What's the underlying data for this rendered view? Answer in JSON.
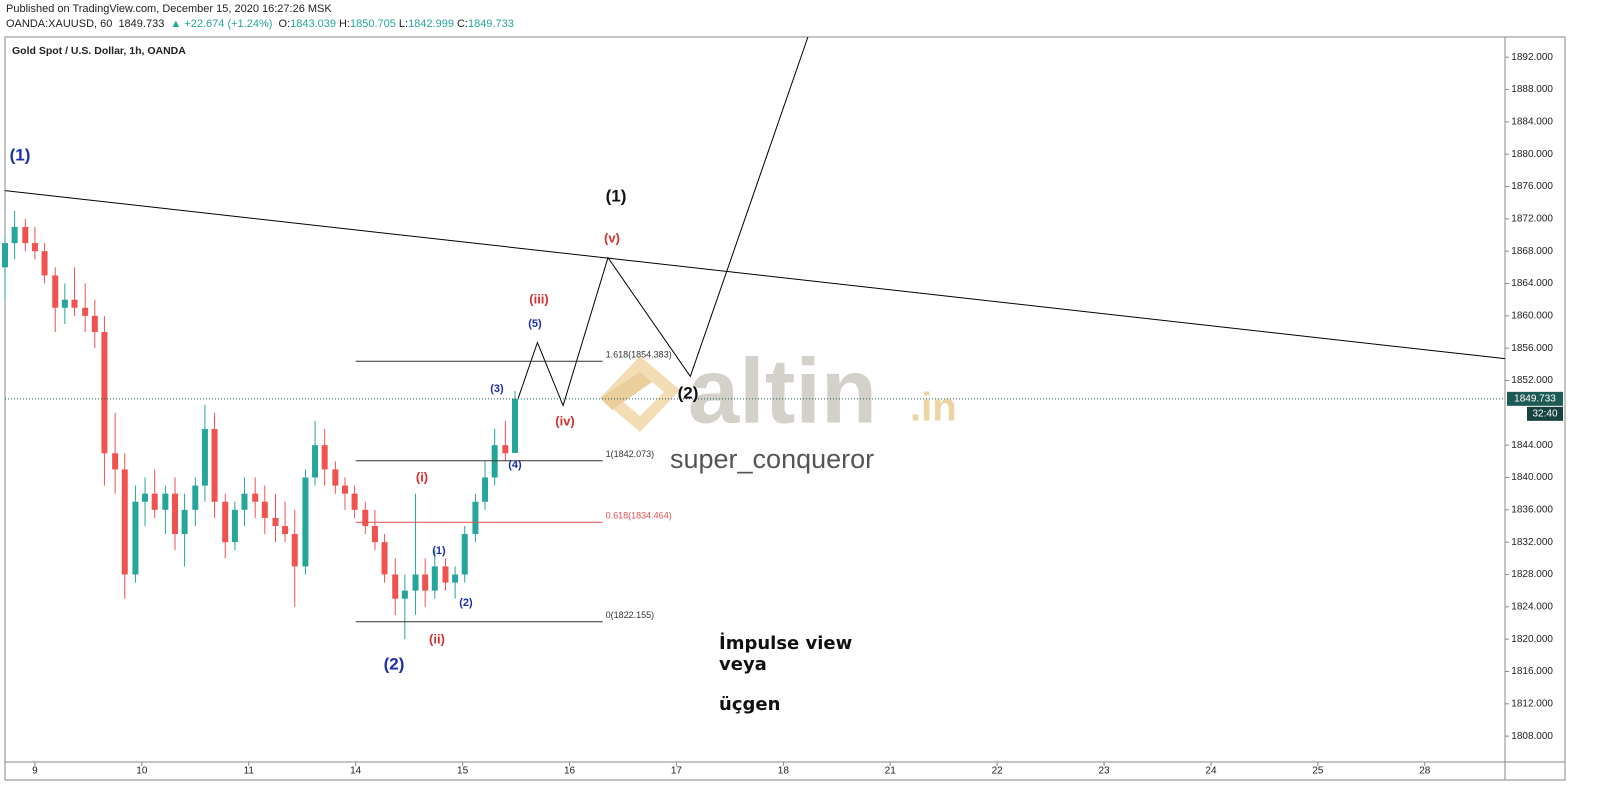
{
  "header": {
    "published": "Published on TradingView.com, December 15, 2020 16:27:26 MSK",
    "symbol": "OANDA:XAUUSD, 60",
    "last": "1849.733",
    "change": "▲ +22.674 (+1.24%)",
    "ohlc": [
      {
        "key": "O:",
        "value": "1843.039"
      },
      {
        "key": "H:",
        "value": "1850.705"
      },
      {
        "key": "L:",
        "value": "1842.999"
      },
      {
        "key": "C:",
        "value": "1849.733"
      }
    ]
  },
  "chart_data": {
    "type": "candlestick",
    "title": "Gold Spot / U.S. Dollar, 1h, OANDA",
    "up_color": "#26a69a",
    "down_color": "#ef5350",
    "xlim": [
      -0.28,
      13.75
    ],
    "ylim": [
      1804.8,
      1894.5
    ],
    "xticks": [
      {
        "value": 0,
        "label": "9"
      },
      {
        "value": 1,
        "label": "10"
      },
      {
        "value": 2,
        "label": "11"
      },
      {
        "value": 3,
        "label": "14"
      },
      {
        "value": 4,
        "label": "15"
      },
      {
        "value": 5,
        "label": "16"
      },
      {
        "value": 6,
        "label": "17"
      },
      {
        "value": 7,
        "label": "18"
      },
      {
        "value": 8,
        "label": "21"
      },
      {
        "value": 9,
        "label": "22"
      },
      {
        "value": 10,
        "label": "23"
      },
      {
        "value": 11,
        "label": "24"
      },
      {
        "value": 12,
        "label": "25"
      },
      {
        "value": 13,
        "label": "28"
      }
    ],
    "yticks": [
      {
        "value": 1892,
        "label": "1892.000"
      },
      {
        "value": 1888,
        "label": "1888.000"
      },
      {
        "value": 1884,
        "label": "1884.000"
      },
      {
        "value": 1880,
        "label": "1880.000"
      },
      {
        "value": 1876,
        "label": "1876.000"
      },
      {
        "value": 1872,
        "label": "1872.000"
      },
      {
        "value": 1868,
        "label": "1868.000"
      },
      {
        "value": 1864,
        "label": "1864.000"
      },
      {
        "value": 1860,
        "label": "1860.000"
      },
      {
        "value": 1856,
        "label": "1856.000"
      },
      {
        "value": 1852,
        "label": "1852.000"
      },
      {
        "value": 1844,
        "label": "1844.000"
      },
      {
        "value": 1840,
        "label": "1840.000"
      },
      {
        "value": 1836,
        "label": "1836.000"
      },
      {
        "value": 1832,
        "label": "1832.000"
      },
      {
        "value": 1828,
        "label": "1828.000"
      },
      {
        "value": 1824,
        "label": "1824.000"
      },
      {
        "value": 1820,
        "label": "1820.000"
      },
      {
        "value": 1816,
        "label": "1816.000"
      },
      {
        "value": 1812,
        "label": "1812.000"
      },
      {
        "value": 1808,
        "label": "1808.000"
      }
    ],
    "x": [
      -0.28,
      -0.19,
      -0.09,
      0,
      0.09,
      0.19,
      0.28,
      0.37,
      0.47,
      0.56,
      0.65,
      0.75,
      0.84,
      0.94,
      1.03,
      1.12,
      1.22,
      1.31,
      1.4,
      1.5,
      1.59,
      1.68,
      1.78,
      1.87,
      1.96,
      2.06,
      2.15,
      2.25,
      2.34,
      2.43,
      2.53,
      2.62,
      2.71,
      2.81,
      2.9,
      2.99,
      3.09,
      3.18,
      3.27,
      3.37,
      3.46,
      3.56,
      3.65,
      3.74,
      3.84,
      3.93,
      4.02,
      4.12,
      4.21,
      4.3,
      4.4,
      4.49
    ],
    "open": [
      1866,
      1869,
      1871,
      1869,
      1868,
      1865,
      1861,
      1862,
      1861,
      1860,
      1858,
      1843,
      1841,
      1828,
      1837,
      1838,
      1836,
      1838,
      1833,
      1836,
      1839,
      1846,
      1837,
      1832,
      1836,
      1838,
      1837,
      1835,
      1834,
      1833,
      1829,
      1840,
      1844,
      1841,
      1839,
      1838,
      1836,
      1834,
      1832,
      1828,
      1825,
      1826,
      1828,
      1826,
      1829,
      1827,
      1828,
      1833,
      1837,
      1840,
      1844,
      1843.039
    ],
    "high": [
      1870,
      1873,
      1872,
      1871,
      1869,
      1866,
      1864,
      1866,
      1864,
      1862,
      1860,
      1848,
      1843,
      1839,
      1840,
      1841,
      1839,
      1840,
      1838,
      1840,
      1849,
      1848,
      1838,
      1837,
      1840,
      1840,
      1839,
      1838,
      1837,
      1836,
      1841,
      1847,
      1846,
      1842,
      1840,
      1839,
      1837,
      1836,
      1833,
      1830,
      1828,
      1838,
      1830,
      1831,
      1830,
      1829,
      1834,
      1838,
      1842,
      1846,
      1847,
      1850.705
    ],
    "low": [
      1862,
      1867,
      1868,
      1867,
      1864,
      1858,
      1859,
      1860,
      1858,
      1856,
      1839,
      1838,
      1825,
      1827,
      1834,
      1835,
      1833,
      1831,
      1829,
      1834,
      1837,
      1835,
      1830,
      1831,
      1834,
      1835,
      1833,
      1832,
      1832,
      1824,
      1828,
      1839,
      1839,
      1838,
      1836,
      1835,
      1833,
      1831,
      1827,
      1823,
      1820,
      1823,
      1824,
      1825,
      1826,
      1825,
      1827,
      1832,
      1836,
      1839,
      1842,
      1842.999
    ],
    "close": [
      1869,
      1871,
      1869,
      1868,
      1865,
      1861,
      1862,
      1861,
      1860,
      1858,
      1843,
      1841,
      1828,
      1837,
      1838,
      1836,
      1838,
      1833,
      1836,
      1839,
      1846,
      1837,
      1832,
      1836,
      1838,
      1837,
      1835,
      1834,
      1833,
      1829,
      1840,
      1844,
      1841,
      1839,
      1838,
      1836,
      1834,
      1832,
      1828,
      1825,
      1826,
      1828,
      1826,
      1829,
      1827,
      1828,
      1833,
      1837,
      1840,
      1844,
      1843,
      1849.733
    ],
    "price_line": {
      "value": 1849.733,
      "label": "1849.733",
      "countdown": "32:40",
      "color": "#1e5a55"
    },
    "trendline": {
      "x": [
        -0.28,
        13.75
      ],
      "values": [
        1875.5,
        1854.7
      ],
      "color": "#000000"
    },
    "projection": {
      "x": [
        4.52,
        4.7,
        4.94,
        5.36,
        6.13,
        7.23
      ],
      "values": [
        1849.8,
        1856.7,
        1848.9,
        1867.2,
        1852.5,
        1894.5
      ],
      "color": "#000000"
    },
    "fib": {
      "x": [
        3.0,
        5.31
      ],
      "levels": [
        {
          "value": 1854.383,
          "label": "1.618(1854.383)",
          "color": "#333333"
        },
        {
          "value": 1842.073,
          "label": "1(1842.073)",
          "color": "#333333"
        },
        {
          "value": 1834.464,
          "label": "0.618(1834.464)",
          "color": "#e05050"
        },
        {
          "value": 1822.155,
          "label": "0(1822.155)",
          "color": "#333333"
        }
      ]
    },
    "wave_labels": [
      {
        "text": "(1)",
        "color": "#1c2fa8"
      },
      {
        "text": "(1)",
        "color": "#111111"
      },
      {
        "text": "(v)",
        "color": "#d32f2f"
      },
      {
        "text": "(iii)",
        "color": "#d32f2f"
      },
      {
        "text": "(5)",
        "color": "#1c2fa8"
      },
      {
        "text": "(3)",
        "color": "#1c2fa8"
      },
      {
        "text": "(iv)",
        "color": "#d32f2f"
      },
      {
        "text": "(4)",
        "color": "#1c2fa8"
      },
      {
        "text": "(2)",
        "color": "#111111"
      },
      {
        "text": "(i)",
        "color": "#d32f2f"
      },
      {
        "text": "(1)",
        "color": "#1c2fa8"
      },
      {
        "text": "(2)",
        "color": "#1c2fa8"
      },
      {
        "text": "(ii)",
        "color": "#d32f2f"
      },
      {
        "text": "(2)",
        "color": "#1c2fa8"
      }
    ],
    "note": [
      "İmpulse  view",
      "veya",
      "üçgen"
    ]
  },
  "watermark": {
    "brand": "altin",
    "tld": ".in",
    "author": "super_conqueror"
  }
}
